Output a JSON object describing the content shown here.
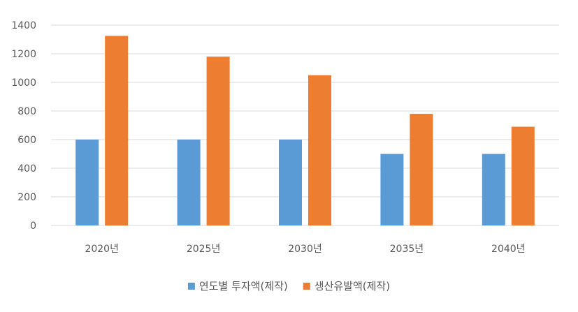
{
  "chart_data": {
    "type": "bar",
    "title": "",
    "xlabel": "",
    "ylabel": "",
    "categories": [
      "2020년",
      "2025년",
      "2030년",
      "2035년",
      "2040년"
    ],
    "series": [
      {
        "name": "연도별 투자액(제작)",
        "color": "#5B9BD5",
        "values": [
          600,
          600,
          600,
          500,
          500
        ]
      },
      {
        "name": "생산유발액(제작)",
        "color": "#ED7D31",
        "values": [
          1325,
          1180,
          1050,
          780,
          690
        ]
      }
    ],
    "ylim": [
      0,
      1400
    ],
    "yticks": [
      0,
      200,
      400,
      600,
      800,
      1000,
      1200,
      1400
    ],
    "grid": true,
    "legend_position": "bottom"
  }
}
